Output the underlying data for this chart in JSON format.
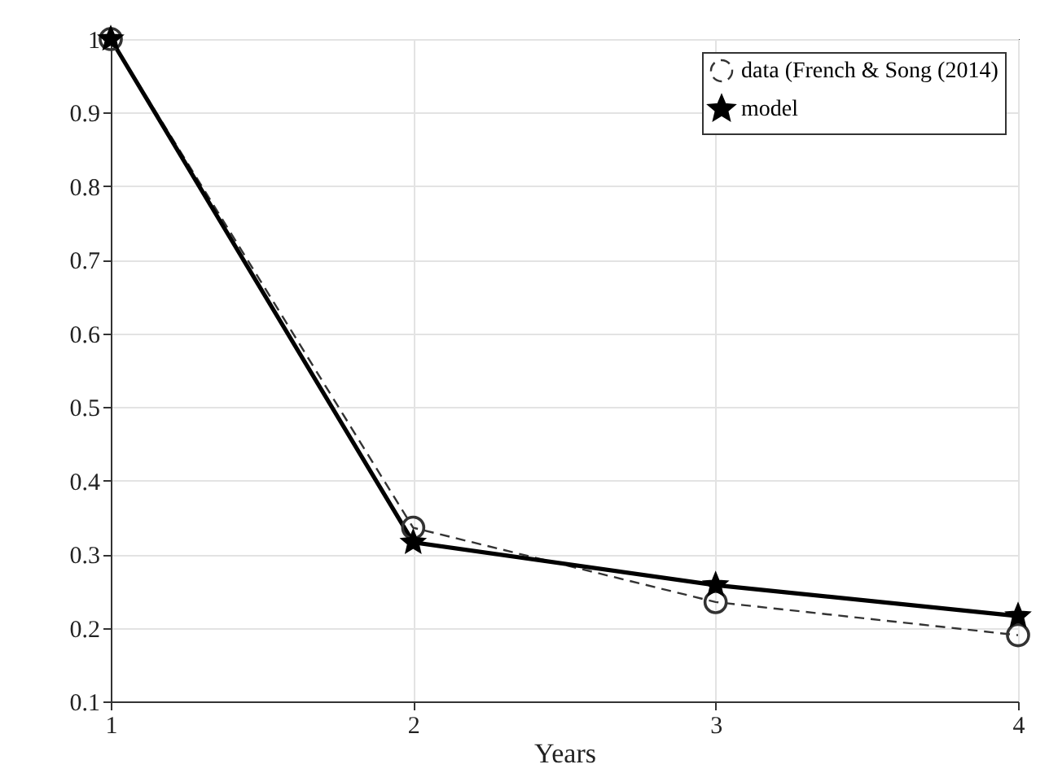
{
  "chart_data": {
    "type": "line",
    "xlabel": "Years",
    "x": [
      1,
      2,
      3,
      4
    ],
    "series": [
      {
        "name": "data (French & Song (2014)",
        "color": "#333333",
        "values": [
          1,
          0.336,
          0.235,
          0.19
        ],
        "marker": "circle",
        "line_style": "dashed"
      },
      {
        "name": "model",
        "color": "#000000",
        "values": [
          1,
          0.316,
          0.258,
          0.216
        ],
        "marker": "star",
        "line_style": "solid"
      }
    ],
    "xlim": [
      1,
      4
    ],
    "xticks": [
      1,
      2,
      3,
      4
    ],
    "ylim": [
      0.1,
      1
    ],
    "yticks": [
      0.1,
      0.2,
      0.3,
      0.4,
      0.5,
      0.6,
      0.7,
      0.8,
      0.9,
      1
    ],
    "grid": true,
    "legend": "top right"
  }
}
